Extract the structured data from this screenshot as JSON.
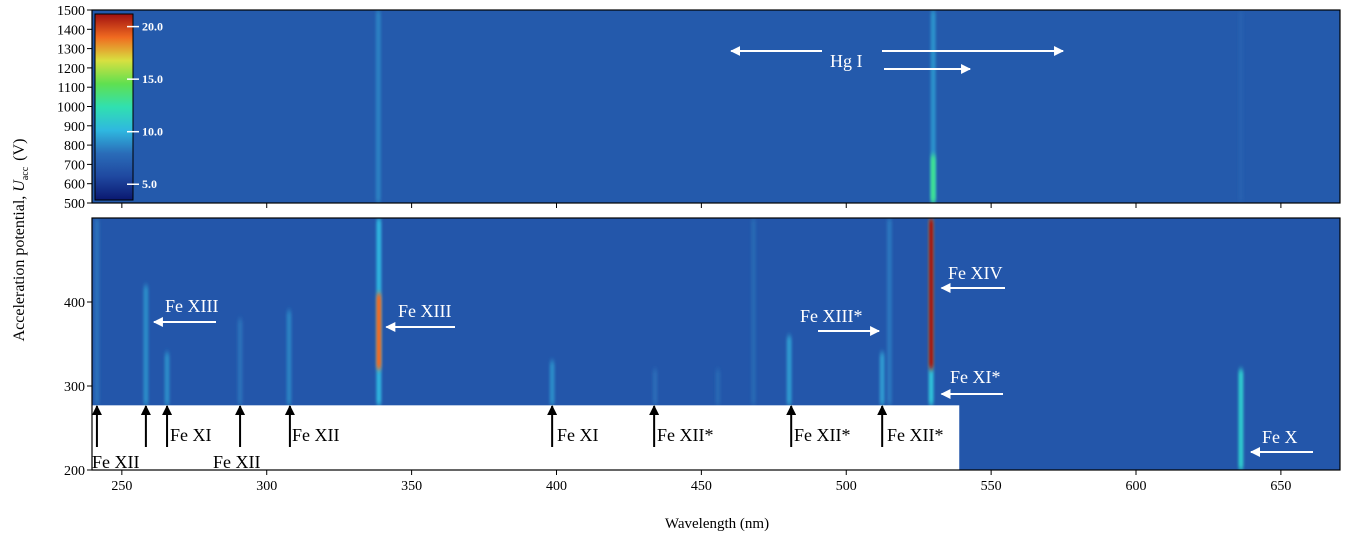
{
  "chart_data": {
    "type": "heatmap",
    "x_label": "Wavelength (nm)",
    "y_label": {
      "text": "Acceleration potential, ",
      "symbol": "U",
      "subscript": "acc",
      "unit": "(V)"
    },
    "xlim": [
      239.7,
      670.4
    ],
    "xticks": [
      250,
      300,
      350,
      400,
      450,
      500,
      550,
      600,
      650
    ],
    "colorbar": {
      "lim": [
        3.5,
        21.2
      ],
      "ticks": [
        {
          "value": 5,
          "label": "5.0"
        },
        {
          "value": 10,
          "label": "10.0"
        },
        {
          "value": 15,
          "label": "15.0"
        },
        {
          "value": 20,
          "label": "20.0"
        }
      ],
      "colors": [
        "#0a1870",
        "#1f48a0",
        "#2a6cb8",
        "#2fb8e0",
        "#30e0b0",
        "#60e050",
        "#d8e040",
        "#f06a20",
        "#a01010"
      ]
    },
    "panels": [
      {
        "ylim": [
          500,
          1500
        ],
        "yticks": [
          500,
          600,
          700,
          800,
          900,
          1000,
          1100,
          1200,
          1300,
          1400,
          1500
        ],
        "background": 6.8,
        "lines": [
          {
            "wavelength": 338.5,
            "intensity": 8.5,
            "span": [
              500,
              1500
            ]
          },
          {
            "wavelength": 530,
            "intensity": 9,
            "span": [
              500,
              1500
            ]
          },
          {
            "wavelength": 530,
            "intensity": 13,
            "span": [
              500,
              750
            ]
          },
          {
            "wavelength": 636.2,
            "intensity": 7.2,
            "span": [
              500,
              1500
            ]
          }
        ]
      },
      {
        "ylim": [
          200,
          500
        ],
        "yticks": [
          200,
          300,
          400
        ],
        "background": 6.6,
        "lines": [
          {
            "wavelength": 241.4,
            "intensity": 8,
            "span": [
              277,
              500
            ]
          },
          {
            "wavelength": 258.3,
            "intensity": 8.8,
            "span": [
              277,
              420
            ]
          },
          {
            "wavelength": 265.6,
            "intensity": 8.8,
            "span": [
              277,
              340
            ]
          },
          {
            "wavelength": 290.8,
            "intensity": 8,
            "span": [
              277,
              380
            ]
          },
          {
            "wavelength": 307.7,
            "intensity": 8.5,
            "span": [
              277,
              390
            ]
          },
          {
            "wavelength": 338.7,
            "intensity": 10,
            "span": [
              277,
              500
            ]
          },
          {
            "wavelength": 338.7,
            "intensity": 19,
            "span": [
              320,
              410
            ]
          },
          {
            "wavelength": 398.5,
            "intensity": 8.8,
            "span": [
              277,
              330
            ]
          },
          {
            "wavelength": 434,
            "intensity": 7.8,
            "span": [
              277,
              320
            ]
          },
          {
            "wavelength": 455.7,
            "intensity": 7.6,
            "span": [
              277,
              320
            ]
          },
          {
            "wavelength": 468,
            "intensity": 7.6,
            "span": [
              277,
              500
            ]
          },
          {
            "wavelength": 480.3,
            "intensity": 9.2,
            "span": [
              277,
              360
            ]
          },
          {
            "wavelength": 512.4,
            "intensity": 9.2,
            "span": [
              277,
              340
            ]
          },
          {
            "wavelength": 514.9,
            "intensity": 8.2,
            "span": [
              277,
              500
            ]
          },
          {
            "wavelength": 529.3,
            "intensity": 10.5,
            "span": [
              277,
              500
            ]
          },
          {
            "wavelength": 529.3,
            "intensity": 21,
            "span": [
              320,
              500
            ]
          },
          {
            "wavelength": 636.2,
            "intensity": 11,
            "span": [
              200,
              320
            ]
          }
        ]
      }
    ],
    "blank_region": {
      "xlim": [
        239.7,
        539
      ],
      "ylim": [
        200,
        277
      ]
    },
    "annotations": [
      {
        "text": "Fe XII",
        "targets": [
          241.4,
          258.3
        ]
      },
      {
        "text": "Fe XI",
        "targets": [
          265.6
        ]
      },
      {
        "text": "Fe XII",
        "targets": [
          290.8
        ]
      },
      {
        "text": "Fe XII",
        "targets": [
          308.0
        ]
      },
      {
        "text": "Fe XI",
        "targets": [
          398.5
        ]
      },
      {
        "text": "Fe XII*",
        "targets": [
          433.7
        ]
      },
      {
        "text": "Fe XII*",
        "targets": [
          481.0
        ]
      },
      {
        "text": "Fe XII*",
        "targets": [
          512.4
        ]
      },
      {
        "text": "Fe XIII",
        "targets": [
          259.7
        ]
      },
      {
        "text": "Fe XIII",
        "targets": [
          339.9
        ]
      },
      {
        "text": "Fe XIII*",
        "targets": [
          512.7
        ]
      },
      {
        "text": "Fe XIV",
        "targets": [
          531.5
        ]
      },
      {
        "text": "Fe XI*",
        "targets": [
          531.5
        ]
      },
      {
        "text": "Fe X",
        "targets": [
          638.3
        ]
      },
      {
        "text": "Hg I",
        "targets": [
          458.9,
          576.2,
          544.1
        ]
      }
    ]
  }
}
